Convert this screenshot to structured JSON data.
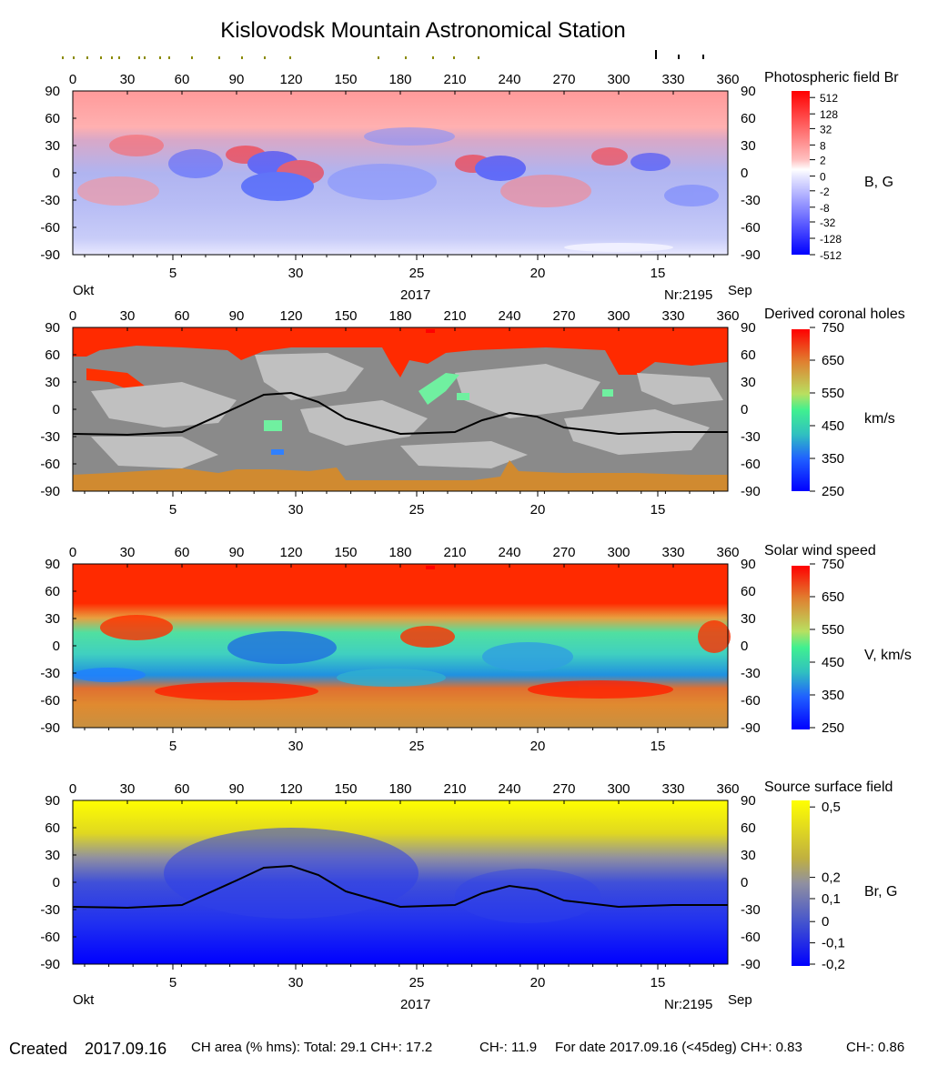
{
  "title": "Kislovodsk Mountain Astronomical Station",
  "longitude_ticks": [
    "0",
    "30",
    "60",
    "90",
    "120",
    "150",
    "180",
    "210",
    "240",
    "270",
    "300",
    "330",
    "360"
  ],
  "latitude_ticks": [
    "90",
    "60",
    "30",
    "0",
    "-30",
    "-60",
    "-90"
  ],
  "date_ticks": [
    "5",
    "30",
    "25",
    "20",
    "15"
  ],
  "date_labels": {
    "left": "Okt",
    "right": "Sep",
    "year": "2017",
    "rotation": "Nr:2195"
  },
  "panels": [
    {
      "id": "photo",
      "title": "Photospheric field Br",
      "unit": "B, G",
      "colorbar_labels": [
        "512",
        "128",
        "32",
        "8",
        "2",
        "0",
        "-2",
        "-8",
        "-32",
        "-128",
        "-512"
      ]
    },
    {
      "id": "ch",
      "title": "Derived coronal holes",
      "unit": "km/s",
      "colorbar_labels": [
        "750",
        "650",
        "550",
        "450",
        "350",
        "250"
      ]
    },
    {
      "id": "sw",
      "title": "Solar wind speed",
      "unit": "V, km/s",
      "colorbar_labels": [
        "750",
        "650",
        "550",
        "450",
        "350",
        "250"
      ]
    },
    {
      "id": "ss",
      "title": "Source surface field",
      "unit": "Br, G",
      "colorbar_labels": [
        "0,5",
        "0,2",
        "0,1",
        "0",
        "-0,1",
        "-0,2"
      ]
    }
  ],
  "footer": {
    "created_label": "Created",
    "created_date": "2017.09.16",
    "ch_area": "CH area (% hms): Total: 29.1 CH+: 17.2",
    "ch_minus": "CH-: 11.9",
    "for_date": "For date 2017.09.16 (<45deg) CH+: 0.83",
    "for_date_minus": "CH-: 0.86"
  },
  "colors": {
    "positive_field": "#ff3030",
    "negative_field": "#2040ff",
    "fast_wind": "#ff2a00",
    "slow_wind": "#0000ff",
    "polar_south": "#d08a30",
    "closed_field_dark": "#8a8a8a",
    "closed_field_light": "#c0c0c0",
    "source_positive": "#ffff00",
    "source_negative": "#0000ff"
  },
  "chart_data": [
    {
      "type": "heatmap",
      "title": "Photospheric field Br",
      "colorbar_label": "B, G",
      "colorbar_values": [
        512,
        128,
        32,
        8,
        2,
        0,
        -2,
        -8,
        -32,
        -128,
        -512
      ],
      "x_range": [
        0,
        360
      ],
      "y_range": [
        -90,
        90
      ],
      "notes": "Positive polarity (red) dominates the north pole, negative (blue) the south; active regions near lon 90-120 and 240"
    },
    {
      "type": "heatmap",
      "title": "Derived coronal holes",
      "colorbar_label": "km/s",
      "colorbar_values": [
        750,
        650,
        550,
        450,
        350,
        250
      ],
      "x_range": [
        0,
        360
      ],
      "y_range": [
        -90,
        90
      ],
      "neutral_line": {
        "lon": [
          0,
          30,
          60,
          90,
          105,
          120,
          135,
          150,
          180,
          210,
          225,
          240,
          255,
          270,
          300,
          330,
          360
        ],
        "lat": [
          -27,
          -28,
          -25,
          2,
          16,
          18,
          8,
          -10,
          -27,
          -25,
          -12,
          -4,
          -8,
          -20,
          -27,
          -25,
          -25
        ]
      }
    },
    {
      "type": "heatmap",
      "title": "Solar wind speed",
      "colorbar_label": "V, km/s",
      "colorbar_values": [
        750,
        650,
        550,
        450,
        350,
        250
      ],
      "x_range": [
        0,
        360
      ],
      "y_range": [
        -90,
        90
      ]
    },
    {
      "type": "heatmap",
      "title": "Source surface field",
      "colorbar_label": "Br, G",
      "colorbar_values": [
        0.5,
        0.2,
        0.1,
        0,
        -0.1,
        -0.2
      ],
      "x_range": [
        0,
        360
      ],
      "y_range": [
        -90,
        90
      ],
      "neutral_line": {
        "lon": [
          0,
          30,
          60,
          90,
          105,
          120,
          135,
          150,
          180,
          210,
          225,
          240,
          255,
          270,
          300,
          330,
          360
        ],
        "lat": [
          -27,
          -28,
          -25,
          2,
          16,
          18,
          8,
          -10,
          -27,
          -25,
          -12,
          -4,
          -8,
          -20,
          -27,
          -25,
          -25
        ]
      }
    }
  ]
}
